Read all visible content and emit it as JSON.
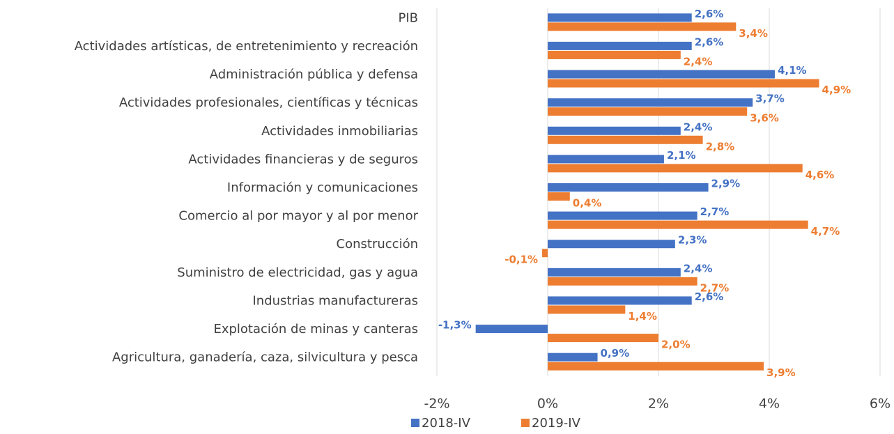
{
  "chart_data": {
    "type": "bar",
    "orientation": "horizontal",
    "categories": [
      "PIB",
      "Actividades artísticas, de entretenimiento y recreación",
      "Administración pública y defensa",
      "Actividades profesionales, científicas y técnicas",
      "Actividades inmobiliarias",
      "Actividades financieras y de seguros",
      "Información y comunicaciones",
      "Comercio al por mayor y al por menor",
      "Construcción",
      "Suministro de electricidad, gas y agua",
      "Industrias manufactureras",
      "Explotación de minas y canteras",
      "Agricultura, ganadería, caza, silvicultura y pesca"
    ],
    "series": [
      {
        "name": "2018-IV",
        "color": "#4472c4",
        "values": [
          2.6,
          2.6,
          4.1,
          3.7,
          2.4,
          2.1,
          2.9,
          2.7,
          2.3,
          2.4,
          2.6,
          -1.3,
          0.9
        ],
        "value_labels": [
          "2,6%",
          "2,6%",
          "4,1%",
          "3,7%",
          "2,4%",
          "2,1%",
          "2,9%",
          "2,7%",
          "2,3%",
          "2,4%",
          "2,6%",
          "-1,3%",
          "0,9%"
        ]
      },
      {
        "name": "2019-IV",
        "color": "#ed7d31",
        "values": [
          3.4,
          2.4,
          4.9,
          3.6,
          2.8,
          4.6,
          0.4,
          4.7,
          -0.1,
          2.7,
          1.4,
          2.0,
          3.9
        ],
        "value_labels": [
          "3,4%",
          "2,4%",
          "4,9%",
          "3,6%",
          "2,8%",
          "4,6%",
          "0,4%",
          "4,7%",
          "-0,1%",
          "2,7%",
          "1,4%",
          "2,0%",
          "3,9%"
        ]
      }
    ],
    "xlim": [
      -2,
      6
    ],
    "xticks": [
      {
        "value": -2,
        "label": "-2%"
      },
      {
        "value": 0,
        "label": "0%"
      },
      {
        "value": 2,
        "label": "2%"
      },
      {
        "value": 4,
        "label": "4%"
      },
      {
        "value": 6,
        "label": "6%"
      }
    ],
    "grid": true,
    "legend": "bottom"
  }
}
